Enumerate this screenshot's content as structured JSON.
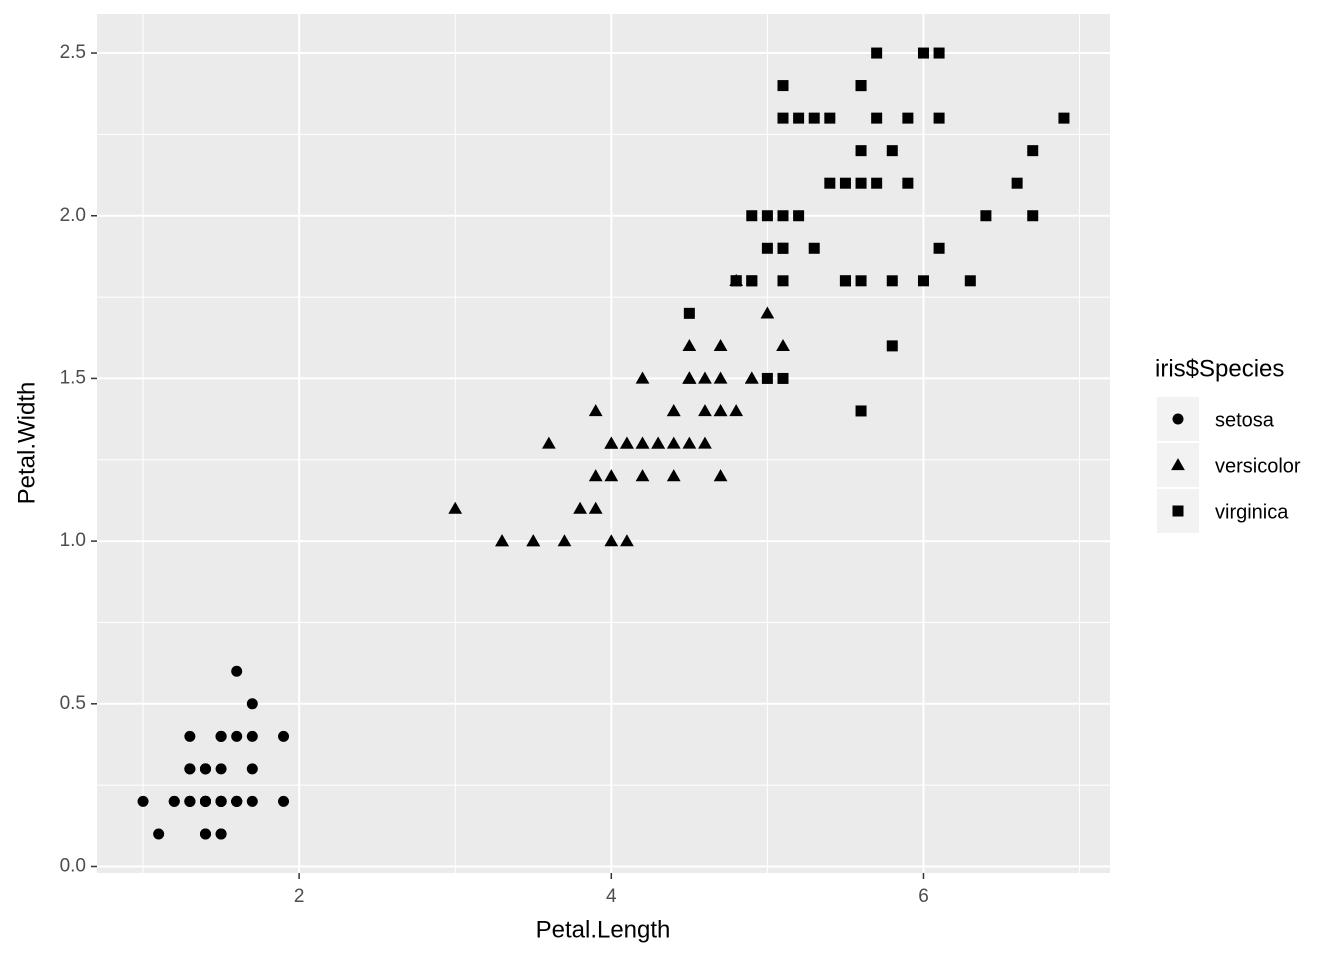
{
  "chart_data": {
    "type": "scatter",
    "x_label": "Petal.Length",
    "y_label": "Petal.Width",
    "legend_title": "iris$Species",
    "legend_position": "right",
    "grid": true,
    "xlim": [
      0.705,
      7.195
    ],
    "xticks": [
      2,
      4,
      6
    ],
    "ylim": [
      -0.02,
      2.62
    ],
    "yticks": [
      {
        "value": 0,
        "label": "0.0"
      },
      0.5,
      {
        "value": 1,
        "label": "1.0"
      },
      1.5,
      {
        "value": 2,
        "label": "2.0"
      },
      2.5
    ],
    "series": [
      {
        "name": "setosa",
        "shape": "circle",
        "color": "#000000",
        "x": [
          1.4,
          1.4,
          1.3,
          1.5,
          1.4,
          1.7,
          1.4,
          1.5,
          1.4,
          1.5,
          1.5,
          1.6,
          1.4,
          1.1,
          1.2,
          1.5,
          1.3,
          1.4,
          1.7,
          1.5,
          1.7,
          1.5,
          1.0,
          1.7,
          1.9,
          1.6,
          1.6,
          1.5,
          1.4,
          1.6,
          1.6,
          1.5,
          1.5,
          1.4,
          1.5,
          1.2,
          1.3,
          1.4,
          1.3,
          1.5,
          1.3,
          1.3,
          1.3,
          1.6,
          1.9,
          1.4,
          1.6,
          1.4,
          1.5,
          1.4
        ],
        "y": [
          0.2,
          0.2,
          0.2,
          0.2,
          0.2,
          0.4,
          0.3,
          0.2,
          0.2,
          0.1,
          0.2,
          0.2,
          0.1,
          0.1,
          0.2,
          0.4,
          0.4,
          0.3,
          0.3,
          0.3,
          0.2,
          0.4,
          0.2,
          0.5,
          0.2,
          0.2,
          0.4,
          0.2,
          0.2,
          0.2,
          0.2,
          0.4,
          0.1,
          0.2,
          0.2,
          0.2,
          0.2,
          0.1,
          0.2,
          0.2,
          0.3,
          0.3,
          0.2,
          0.6,
          0.4,
          0.3,
          0.2,
          0.2,
          0.2,
          0.2
        ]
      },
      {
        "name": "versicolor",
        "shape": "triangle",
        "color": "#000000",
        "x": [
          4.7,
          4.5,
          4.9,
          4.0,
          4.6,
          4.5,
          4.7,
          3.3,
          4.6,
          3.9,
          3.5,
          4.2,
          4.0,
          4.7,
          3.6,
          4.4,
          4.5,
          4.1,
          4.5,
          3.9,
          4.8,
          4.0,
          4.9,
          4.7,
          4.3,
          4.4,
          4.8,
          5.0,
          4.5,
          3.5,
          3.8,
          3.7,
          3.9,
          5.1,
          4.5,
          4.5,
          4.7,
          4.4,
          4.1,
          4.0,
          4.4,
          4.6,
          4.0,
          3.3,
          4.2,
          4.2,
          4.2,
          4.3,
          3.0,
          4.1
        ],
        "y": [
          1.4,
          1.5,
          1.5,
          1.3,
          1.5,
          1.3,
          1.6,
          1.0,
          1.3,
          1.4,
          1.0,
          1.5,
          1.0,
          1.4,
          1.3,
          1.4,
          1.5,
          1.0,
          1.5,
          1.1,
          1.8,
          1.3,
          1.5,
          1.2,
          1.3,
          1.4,
          1.4,
          1.7,
          1.5,
          1.0,
          1.1,
          1.0,
          1.2,
          1.6,
          1.5,
          1.6,
          1.5,
          1.3,
          1.3,
          1.3,
          1.2,
          1.4,
          1.2,
          1.0,
          1.3,
          1.2,
          1.3,
          1.3,
          1.1,
          1.3
        ]
      },
      {
        "name": "virginica",
        "shape": "square",
        "color": "#000000",
        "x": [
          6.0,
          5.1,
          5.9,
          5.6,
          5.8,
          6.6,
          4.5,
          6.3,
          5.8,
          6.1,
          5.1,
          5.3,
          5.5,
          5.0,
          5.1,
          5.3,
          5.5,
          6.7,
          6.9,
          5.0,
          5.7,
          4.9,
          6.7,
          4.9,
          5.7,
          6.0,
          4.8,
          4.9,
          5.6,
          5.8,
          6.1,
          6.4,
          5.6,
          5.1,
          5.6,
          6.1,
          5.6,
          5.5,
          4.8,
          5.4,
          5.6,
          5.1,
          5.1,
          5.9,
          5.7,
          5.2,
          5.0,
          5.2,
          5.4,
          5.1
        ],
        "y": [
          2.5,
          1.9,
          2.1,
          1.8,
          2.2,
          2.1,
          1.7,
          1.8,
          1.8,
          2.5,
          2.0,
          1.9,
          2.1,
          2.0,
          2.4,
          2.3,
          1.8,
          2.2,
          2.3,
          1.5,
          2.3,
          2.0,
          2.0,
          1.8,
          2.1,
          1.8,
          1.8,
          1.8,
          2.1,
          1.6,
          1.9,
          2.0,
          2.2,
          1.5,
          1.4,
          2.3,
          2.4,
          1.8,
          1.8,
          2.1,
          2.4,
          2.3,
          1.9,
          2.3,
          2.5,
          2.3,
          1.9,
          2.0,
          2.3,
          1.8
        ]
      }
    ]
  }
}
